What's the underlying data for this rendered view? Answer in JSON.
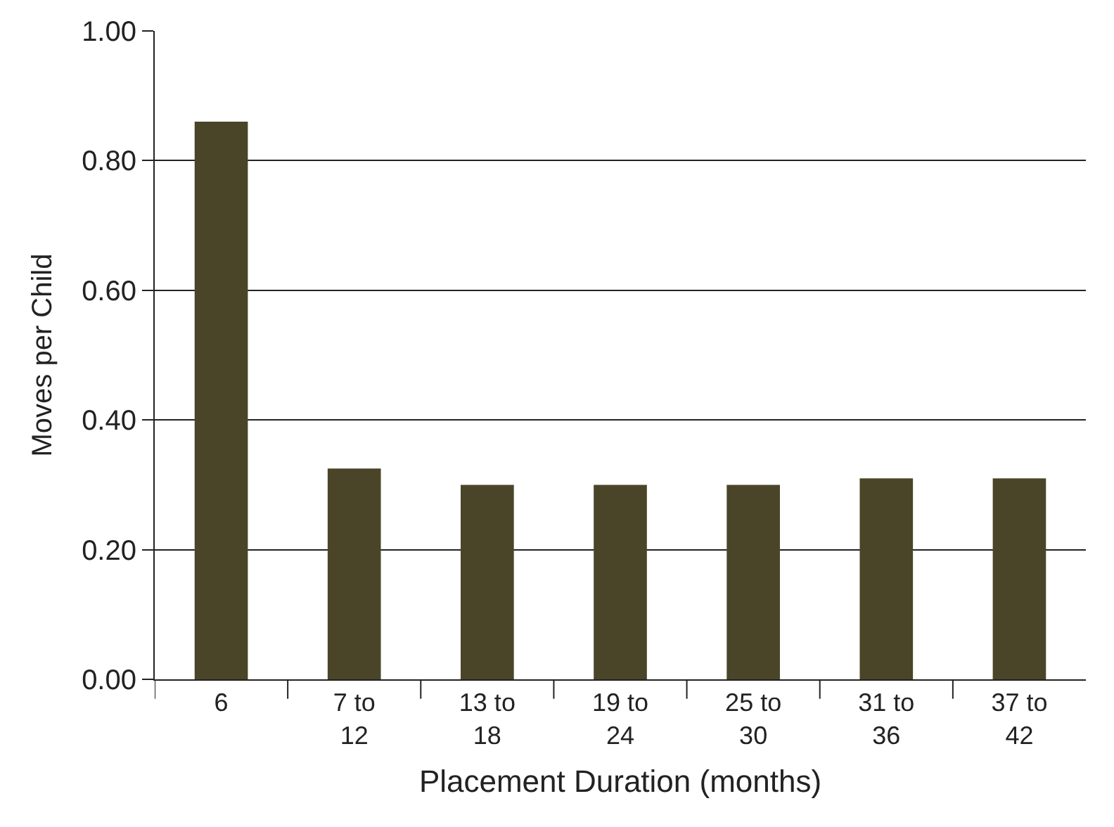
{
  "chart_data": {
    "type": "bar",
    "xlabel": "Placement Duration (months)",
    "ylabel": "Moves per Child",
    "categories": [
      "6",
      "7 to 12",
      "13 to 18",
      "19 to 24",
      "25 to 30",
      "31 to 36",
      "37 to 42"
    ],
    "values": [
      0.86,
      0.325,
      0.3,
      0.3,
      0.3,
      0.31,
      0.31
    ],
    "color": "#4a4528",
    "ylim": [
      0,
      1
    ],
    "yticks": [
      {
        "value": 0,
        "label": "0.00"
      },
      {
        "value": 0.2,
        "label": "0.20"
      },
      {
        "value": 0.4,
        "label": "0.40"
      },
      {
        "value": 0.6,
        "label": "0.60"
      },
      {
        "value": 0.8,
        "label": "0.80"
      },
      {
        "value": 1,
        "label": "1.00"
      }
    ],
    "grid": "y",
    "legend": false
  }
}
